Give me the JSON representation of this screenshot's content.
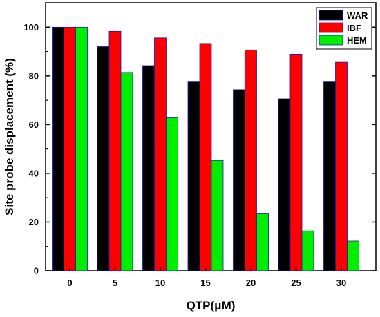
{
  "chart_data": {
    "type": "bar",
    "categories": [
      "0",
      "5",
      "10",
      "15",
      "20",
      "25",
      "30"
    ],
    "series": [
      {
        "name": "WAR",
        "color": "#000000",
        "values": [
          100,
          92,
          84.2,
          77.5,
          74.3,
          70.6,
          77.5
        ]
      },
      {
        "name": "IBF",
        "color": "#ff0000",
        "values": [
          100,
          98.3,
          95.6,
          93.3,
          90.6,
          88.9,
          85.6
        ]
      },
      {
        "name": "HEM",
        "color": "#00ee00",
        "values": [
          100,
          81.4,
          62.8,
          45.3,
          23.4,
          16.4,
          12.2
        ]
      }
    ],
    "xlabel": "QTP(μM)",
    "ylabel": "Site probe displacement (%)",
    "ylim": [
      0,
      110
    ],
    "yticks": [
      "0",
      "20",
      "40",
      "60",
      "80",
      "100"
    ],
    "legend_position": "top-right",
    "grid": false
  }
}
